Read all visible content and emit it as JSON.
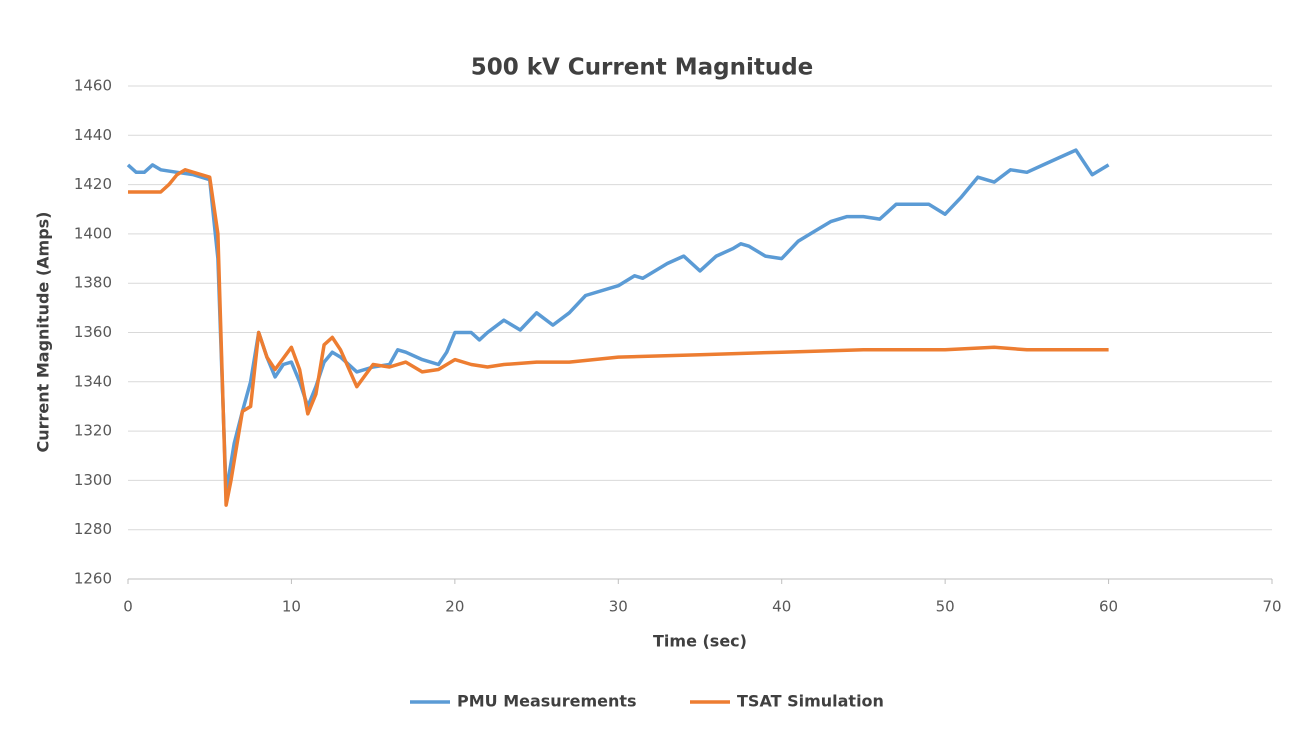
{
  "chart_data": {
    "type": "line",
    "title": "500 kV Current Magnitude",
    "x_label": "Time (sec)",
    "y_label": "Current Magnitude (Amps)",
    "xlim": [
      0,
      70
    ],
    "xticks": [
      0,
      10,
      20,
      30,
      40,
      50,
      60,
      70
    ],
    "ylim": [
      1260,
      1460
    ],
    "yticks": [
      1260,
      1280,
      1300,
      1320,
      1340,
      1360,
      1380,
      1400,
      1420,
      1440,
      1460
    ],
    "grid": true,
    "legend": "bottom",
    "series": [
      {
        "name": "PMU Measurements",
        "color": "#5b9bd5",
        "x": [
          0,
          0.5,
          1,
          1.5,
          2,
          3,
          4,
          5,
          5.5,
          6,
          6.5,
          7,
          7.5,
          8,
          8.5,
          9,
          9.5,
          10,
          10.5,
          11,
          11.5,
          12,
          12.5,
          13,
          14,
          15,
          16,
          16.5,
          17,
          18,
          19,
          19.5,
          20,
          21,
          21.5,
          22,
          23,
          24,
          25,
          26,
          27,
          28,
          30,
          31,
          31.5,
          33,
          34,
          35,
          36,
          37,
          37.5,
          38,
          39,
          40,
          41,
          42,
          43,
          44,
          45,
          46,
          47,
          48,
          49,
          50,
          51,
          52,
          53,
          54,
          55,
          56,
          57,
          58,
          59,
          60
        ],
        "values": [
          1428,
          1425,
          1425,
          1428,
          1426,
          1425,
          1424,
          1422,
          1390,
          1295,
          1315,
          1328,
          1340,
          1360,
          1350,
          1342,
          1347,
          1348,
          1340,
          1330,
          1338,
          1348,
          1352,
          1350,
          1344,
          1346,
          1347,
          1353,
          1352,
          1349,
          1347,
          1352,
          1360,
          1360,
          1357,
          1360,
          1365,
          1361,
          1368,
          1363,
          1368,
          1375,
          1379,
          1383,
          1382,
          1388,
          1391,
          1385,
          1391,
          1394,
          1396,
          1395,
          1391,
          1390,
          1397,
          1401,
          1405,
          1407,
          1407,
          1406,
          1412,
          1412,
          1412,
          1408,
          1415,
          1423,
          1421,
          1426,
          1425,
          1428,
          1431,
          1434,
          1424,
          1428
        ]
      },
      {
        "name": "TSAT Simulation",
        "color": "#ed7d31",
        "x": [
          0,
          1,
          2,
          2.5,
          3,
          3.5,
          4,
          5,
          5.5,
          6,
          6.3,
          7,
          7.5,
          8,
          8.5,
          9,
          10,
          10.5,
          11,
          11.5,
          12,
          12.5,
          13,
          14,
          15,
          16,
          17,
          18,
          19,
          20,
          21,
          22,
          23,
          25,
          27,
          30,
          35,
          40,
          45,
          50,
          53,
          55,
          60
        ],
        "values": [
          1417,
          1417,
          1417,
          1420,
          1424,
          1426,
          1425,
          1423,
          1400,
          1290,
          1300,
          1328,
          1330,
          1360,
          1350,
          1345,
          1354,
          1345,
          1327,
          1335,
          1355,
          1358,
          1353,
          1338,
          1347,
          1346,
          1348,
          1344,
          1345,
          1349,
          1347,
          1346,
          1347,
          1348,
          1348,
          1350,
          1351,
          1352,
          1353,
          1353,
          1354,
          1353,
          1353
        ]
      }
    ]
  }
}
